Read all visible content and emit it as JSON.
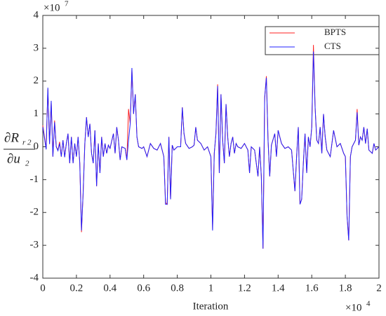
{
  "chart_data": {
    "type": "line",
    "xlabel": "Iteration",
    "ylabel": {
      "numerator": "∂R",
      "numerator_sub": "r 2",
      "denominator": "∂u",
      "denominator_sub": "2"
    },
    "x_scale_label": {
      "base": "×10",
      "exponent": "4"
    },
    "y_scale_label": {
      "base": "×10",
      "exponent": "7"
    },
    "xlim": [
      0,
      20000
    ],
    "ylim": [
      -40000000.0,
      40000000.0
    ],
    "xticks": [
      0,
      {
        "value": 2000,
        "label": "0.2"
      },
      {
        "value": 4000,
        "label": "0.4"
      },
      {
        "value": 6000,
        "label": "0.6"
      },
      {
        "value": 8000,
        "label": "0.8"
      },
      {
        "value": 10000,
        "label": "1"
      },
      {
        "value": 12000,
        "label": "1.2"
      },
      {
        "value": 14000,
        "label": "1.4"
      },
      {
        "value": 16000,
        "label": "1.6"
      },
      {
        "value": 18000,
        "label": "1.8"
      },
      {
        "value": 20000,
        "label": "2"
      }
    ],
    "yticks": [
      {
        "value": -40000000.0,
        "label": "-4"
      },
      {
        "value": -30000000.0,
        "label": "-3"
      },
      {
        "value": -20000000.0,
        "label": "-2"
      },
      {
        "value": -10000000.0,
        "label": "-1"
      },
      0,
      {
        "value": 10000000.0,
        "label": "1"
      },
      {
        "value": 20000000.0,
        "label": "2"
      },
      {
        "value": 30000000.0,
        "label": "3"
      },
      {
        "value": 40000000.0,
        "label": "4"
      }
    ],
    "legend": "upper right",
    "x": [
      0,
      200,
      300,
      400,
      500,
      600,
      700,
      800,
      900,
      1000,
      1100,
      1200,
      1300,
      1400,
      1500,
      1600,
      1700,
      1800,
      1900,
      2000,
      2100,
      2200,
      2300,
      2400,
      2500,
      2600,
      2700,
      2800,
      2900,
      3000,
      3100,
      3200,
      3300,
      3400,
      3500,
      3600,
      3700,
      3800,
      3900,
      4000,
      4200,
      4300,
      4400,
      4500,
      4600,
      4700,
      4900,
      5000,
      5100,
      5200,
      5300,
      5400,
      5500,
      5600,
      5700,
      5900,
      6000,
      6200,
      6400,
      6600,
      6800,
      7000,
      7200,
      7300,
      7400,
      7500,
      7600,
      7700,
      7800,
      8000,
      8200,
      8300,
      8400,
      8500,
      8700,
      8900,
      9000,
      9100,
      9200,
      9400,
      9600,
      9800,
      10000,
      10100,
      10200,
      10300,
      10400,
      10500,
      10600,
      10700,
      10800,
      10900,
      11000,
      11100,
      11200,
      11300,
      11400,
      11500,
      11600,
      11800,
      12000,
      12200,
      12300,
      12400,
      12600,
      12800,
      12900,
      13000,
      13100,
      13200,
      13300,
      13400,
      13500,
      13600,
      13800,
      13900,
      14000,
      14200,
      14400,
      14600,
      14800,
      15000,
      15100,
      15200,
      15300,
      15400,
      15500,
      15600,
      15700,
      15800,
      15900,
      16000,
      16100,
      16200,
      16300,
      16400,
      16500,
      16600,
      16700,
      16800,
      16900,
      17100,
      17300,
      17500,
      17700,
      17900,
      18000,
      18100,
      18200,
      18300,
      18400,
      18600,
      18700,
      18800,
      18900,
      19000,
      19100,
      19200,
      19300,
      19400,
      19600,
      19700,
      19800,
      20000
    ],
    "series": [
      {
        "name": "BPTS",
        "color": "#ff2020",
        "values": [
          6500000.0,
          -500000.0,
          17500000.0,
          1000000.0,
          13500000.0,
          -3000000.0,
          8000000.0,
          0,
          -1000000.0,
          1500000.0,
          -3000000.0,
          2000000.0,
          -3000000.0,
          1000000.0,
          4000000.0,
          -5000000.0,
          3000000.0,
          -5000000.0,
          1000000.0,
          -3000000.0,
          3000000.0,
          -5000000.0,
          -26000000.0,
          -14000000.0,
          1000000.0,
          9000000.0,
          3000000.0,
          7000000.0,
          -2000000.0,
          -5000000.0,
          5000000.0,
          -12000000.0,
          1000000.0,
          -8000000.0,
          3000000.0,
          -3000000.0,
          1000000.0,
          -2000000.0,
          500000.0,
          -500000.0,
          4000000.0,
          -2000000.0,
          6000000.0,
          2000000.0,
          -4000000.0,
          0,
          -500000.0,
          -4000000.0,
          11500000.0,
          7000000.0,
          23500000.0,
          10000000.0,
          16000000.0,
          3000000.0,
          0,
          -500000.0,
          0,
          -3000000.0,
          1000000.0,
          -500000.0,
          -1000000.0,
          1000000.0,
          -3000000.0,
          -17000000.0,
          -17500000.0,
          3000000.0,
          -16000000.0,
          500000.0,
          -1000000.0,
          0,
          0,
          12000000.0,
          4000000.0,
          1000000.0,
          -500000.0,
          0,
          500000.0,
          6000000.0,
          2000000.0,
          1000000.0,
          -1000000.0,
          0,
          -3000000.0,
          -25000000.0,
          -2000000.0,
          4000000.0,
          19000000.0,
          -8000000.0,
          16000000.0,
          2000000.0,
          -5000000.0,
          13000000.0,
          3000000.0,
          -3000000.0,
          1000000.0,
          3000000.0,
          -2000000.0,
          1000000.0,
          0,
          -500000.0,
          1000000.0,
          -1000000.0,
          -8000000.0,
          0,
          -1000000.0,
          -9000000.0,
          0,
          -9000000.0,
          -31000000.0,
          15000000.0,
          21500000.0,
          2000000.0,
          -9000000.0,
          500000.0,
          4000000.0,
          -3000000.0,
          5000000.0,
          1000000.0,
          -500000.0,
          0,
          -1000000.0,
          -13500000.0,
          -3000000.0,
          6000000.0,
          -17500000.0,
          -16000000.0,
          -5000000.0,
          4000000.0,
          -8000000.0,
          3000000.0,
          0,
          6000000.0,
          31000000.0,
          12000000.0,
          2000000.0,
          1000000.0,
          6000000.0,
          -2000000.0,
          10000000.0,
          3000000.0,
          -1000000.0,
          -3000000.0,
          5000000.0,
          0,
          1000000.0,
          -2000000.0,
          -3000000.0,
          -21000000.0,
          -28500000.0,
          -3000000.0,
          0,
          2000000.0,
          11500000.0,
          500000.0,
          3000000.0,
          2000000.0,
          6000000.0,
          1000000.0,
          5500000.0,
          -1000000.0,
          -2000000.0,
          1000000.0,
          -1000000.0,
          0
        ]
      },
      {
        "name": "CTS",
        "color": "#2020ff",
        "values": [
          6000000.0,
          -800000.0,
          18000000.0,
          800000.0,
          14000000.0,
          -3000000.0,
          7500000.0,
          0,
          -1200000.0,
          1000000.0,
          -3000000.0,
          2000000.0,
          -3200000.0,
          1000000.0,
          4000000.0,
          -5000000.0,
          3000000.0,
          -5000000.0,
          1000000.0,
          -3000000.0,
          3000000.0,
          -5000000.0,
          -25500000.0,
          -14000000.0,
          1000000.0,
          9000000.0,
          3000000.0,
          7000000.0,
          -2000000.0,
          -5000000.0,
          5000000.0,
          -12000000.0,
          1000000.0,
          -8000000.0,
          3000000.0,
          -3000000.0,
          1000000.0,
          -2000000.0,
          500000.0,
          -500000.0,
          4000000.0,
          -2000000.0,
          6000000.0,
          2000000.0,
          -4000000.0,
          0,
          -500000.0,
          -4000000.0,
          2000000.0,
          7000000.0,
          24000000.0,
          10000000.0,
          16000000.0,
          3000000.0,
          0,
          -500000.0,
          0,
          -3000000.0,
          1000000.0,
          -500000.0,
          -1000000.0,
          1000000.0,
          -3000000.0,
          -17500000.0,
          -17500000.0,
          3000000.0,
          -16000000.0,
          500000.0,
          -1000000.0,
          0,
          0,
          12000000.0,
          4000000.0,
          1000000.0,
          -500000.0,
          0,
          500000.0,
          6000000.0,
          2000000.0,
          1000000.0,
          -1000000.0,
          0,
          -3000000.0,
          -25500000.0,
          -2000000.0,
          4000000.0,
          18500000.0,
          -8000000.0,
          16000000.0,
          2000000.0,
          -5000000.0,
          13000000.0,
          3000000.0,
          -3000000.0,
          1000000.0,
          3000000.0,
          -2000000.0,
          1000000.0,
          0,
          -500000.0,
          1000000.0,
          -1000000.0,
          -8000000.0,
          0,
          -1000000.0,
          -9000000.0,
          0,
          -9000000.0,
          -31000000.0,
          15000000.0,
          21000000.0,
          2000000.0,
          -9000000.0,
          500000.0,
          4000000.0,
          -3000000.0,
          5000000.0,
          1000000.0,
          -500000.0,
          0,
          -1000000.0,
          -13500000.0,
          -3000000.0,
          6000000.0,
          -17500000.0,
          -16000000.0,
          -5000000.0,
          4000000.0,
          -8000000.0,
          3000000.0,
          0,
          6000000.0,
          29000000.0,
          12000000.0,
          2000000.0,
          1000000.0,
          6000000.0,
          -2000000.0,
          10000000.0,
          3000000.0,
          -1000000.0,
          -3000000.0,
          5000000.0,
          0,
          1000000.0,
          -2000000.0,
          -3000000.0,
          -21000000.0,
          -28500000.0,
          -3000000.0,
          0,
          2000000.0,
          10500000.0,
          500000.0,
          3000000.0,
          2000000.0,
          6000000.0,
          1000000.0,
          5500000.0,
          -1000000.0,
          -2000000.0,
          1000000.0,
          -1000000.0,
          0
        ]
      }
    ]
  }
}
